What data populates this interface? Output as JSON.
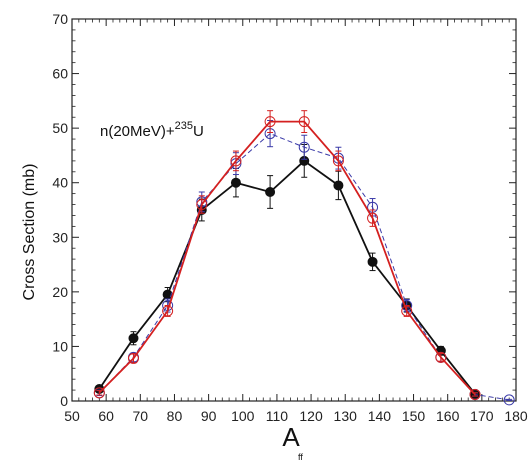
{
  "chart_data": {
    "type": "line",
    "title": "",
    "xlabel": "A",
    "xlabel_subscript": "ff",
    "ylabel": "Cross  Section (mb)",
    "xlim": [
      50,
      180
    ],
    "ylim": [
      0,
      70
    ],
    "x_ticks": [
      50,
      60,
      70,
      80,
      90,
      100,
      110,
      120,
      130,
      140,
      150,
      160,
      170,
      180
    ],
    "y_ticks": [
      0,
      10,
      20,
      30,
      40,
      50,
      60,
      70
    ],
    "grid": false,
    "annotation": {
      "prefix": "n(20MeV)+",
      "superscript": "235",
      "suffix": "U"
    },
    "series": [
      {
        "color": "#111111",
        "marker": "filled-circle",
        "line": "solid",
        "x": [
          58,
          68,
          78,
          88,
          98,
          108,
          118,
          128,
          138,
          148,
          158,
          168
        ],
        "y": [
          2.2,
          11.5,
          19.5,
          35,
          40,
          38.3,
          44,
          39.5,
          25.5,
          17.5,
          9.2,
          1.3
        ],
        "err": [
          0.6,
          1.2,
          1.3,
          2.0,
          2.6,
          3.0,
          3.0,
          2.6,
          1.6,
          1.2,
          0.8,
          0.3
        ]
      },
      {
        "color": "#3a3aa8",
        "marker": "open-circle",
        "line": "dashed",
        "x": [
          58,
          68,
          78,
          88,
          98,
          108,
          118,
          128,
          138,
          148,
          158,
          168,
          178
        ],
        "y": [
          1.5,
          8,
          17.5,
          36.5,
          43.5,
          49,
          46.5,
          44.5,
          35.5,
          17.5,
          8,
          1.2,
          0.2
        ],
        "err": [
          0.5,
          0.8,
          1.2,
          1.8,
          2.0,
          2.4,
          2.2,
          2.0,
          1.6,
          1.1,
          0.8,
          0.3,
          0.1
        ]
      },
      {
        "color": "#d42020",
        "marker": "open-circle",
        "line": "solid",
        "x": [
          58,
          68,
          78,
          88,
          98,
          108,
          118,
          128,
          138,
          148,
          158,
          168
        ],
        "y": [
          1.5,
          7.8,
          16.5,
          36,
          44,
          51.2,
          51.2,
          44,
          33.5,
          16.5,
          8,
          1.2
        ],
        "err": [
          0.4,
          0.8,
          1.0,
          1.6,
          1.8,
          2.0,
          2.0,
          1.8,
          1.5,
          1.0,
          0.7,
          0.3
        ]
      }
    ]
  }
}
